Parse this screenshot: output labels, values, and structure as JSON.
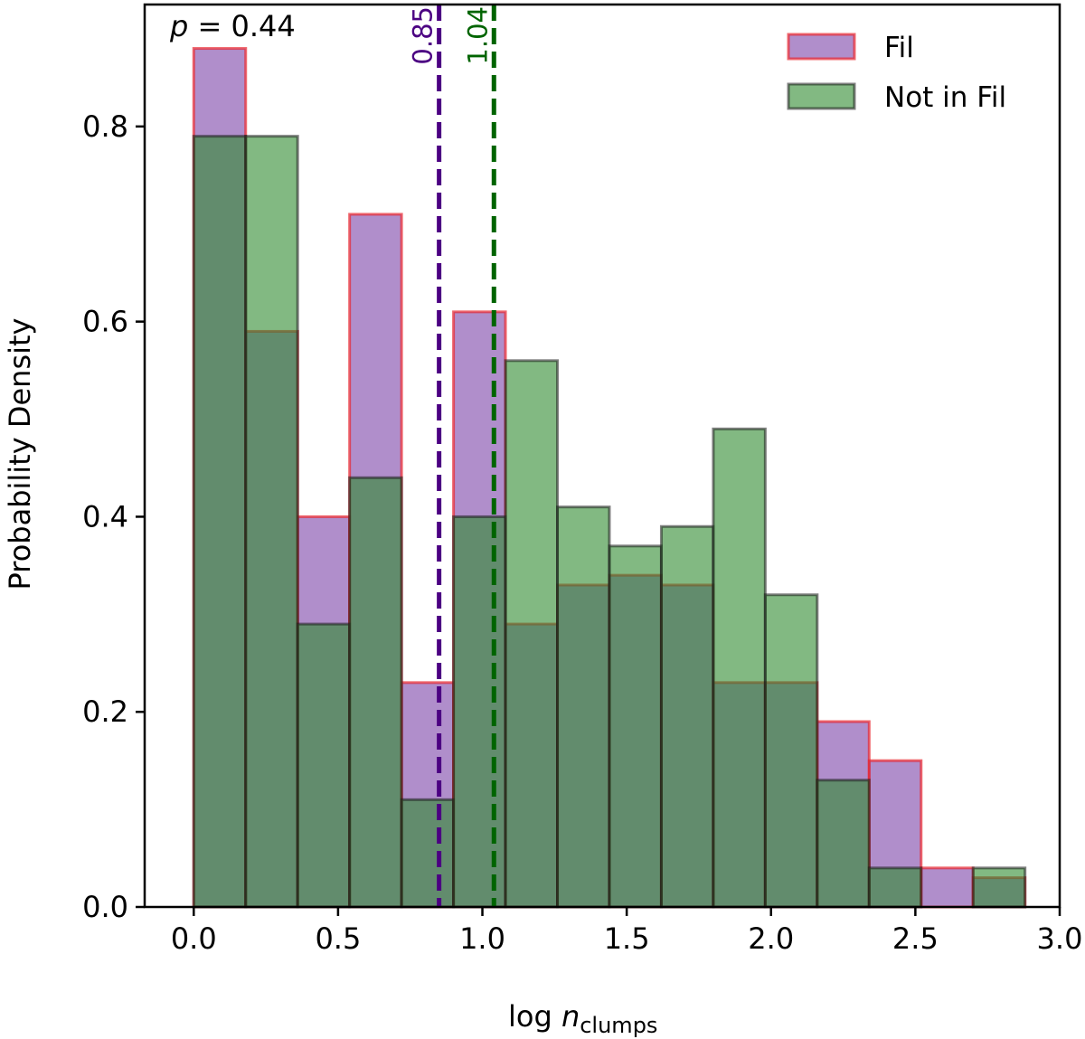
{
  "chart_data": {
    "type": "histogram",
    "xlabel_main": "log ",
    "xlabel_italic": "n",
    "xlabel_sub": "clumps",
    "ylabel": "Probability Density",
    "xlim": [
      -0.17,
      3.0
    ],
    "ylim": [
      0,
      0.925
    ],
    "xticks": [
      0.0,
      0.5,
      1.0,
      1.5,
      2.0,
      2.5,
      3.0
    ],
    "xtick_labels": [
      "0.0",
      "0.5",
      "1.0",
      "1.5",
      "2.0",
      "2.5",
      "3.0"
    ],
    "yticks": [
      0.0,
      0.2,
      0.4,
      0.6,
      0.8
    ],
    "ytick_labels": [
      "0.0",
      "0.2",
      "0.4",
      "0.6",
      "0.8"
    ],
    "bin_edges": [
      0.0,
      0.18,
      0.36,
      0.54,
      0.72,
      0.9,
      1.08,
      1.26,
      1.44,
      1.62,
      1.8,
      1.98,
      2.16,
      2.34,
      2.52,
      2.7,
      2.88
    ],
    "annotation_p": {
      "italic": "p",
      "text": " = 0.44"
    },
    "series": [
      {
        "name": "Fil",
        "fill": "#7b42a8",
        "edge": "#e8272f",
        "values": [
          0.88,
          0.59,
          0.4,
          0.71,
          0.23,
          0.61,
          0.29,
          0.33,
          0.34,
          0.33,
          0.23,
          0.23,
          0.19,
          0.15,
          0.04,
          0.03
        ],
        "median": 0.85,
        "median_label": "0.85",
        "median_color": "#4b0082"
      },
      {
        "name": "Not in Fil",
        "fill": "#2e8b2e",
        "edge": "#1a1a1a",
        "values": [
          0.79,
          0.79,
          0.29,
          0.44,
          0.11,
          0.4,
          0.56,
          0.41,
          0.37,
          0.39,
          0.49,
          0.32,
          0.13,
          0.04,
          0.0,
          0.04
        ],
        "median": 1.04,
        "median_label": "1.04",
        "median_color": "#006400"
      }
    ],
    "legend_position": "top-right"
  }
}
